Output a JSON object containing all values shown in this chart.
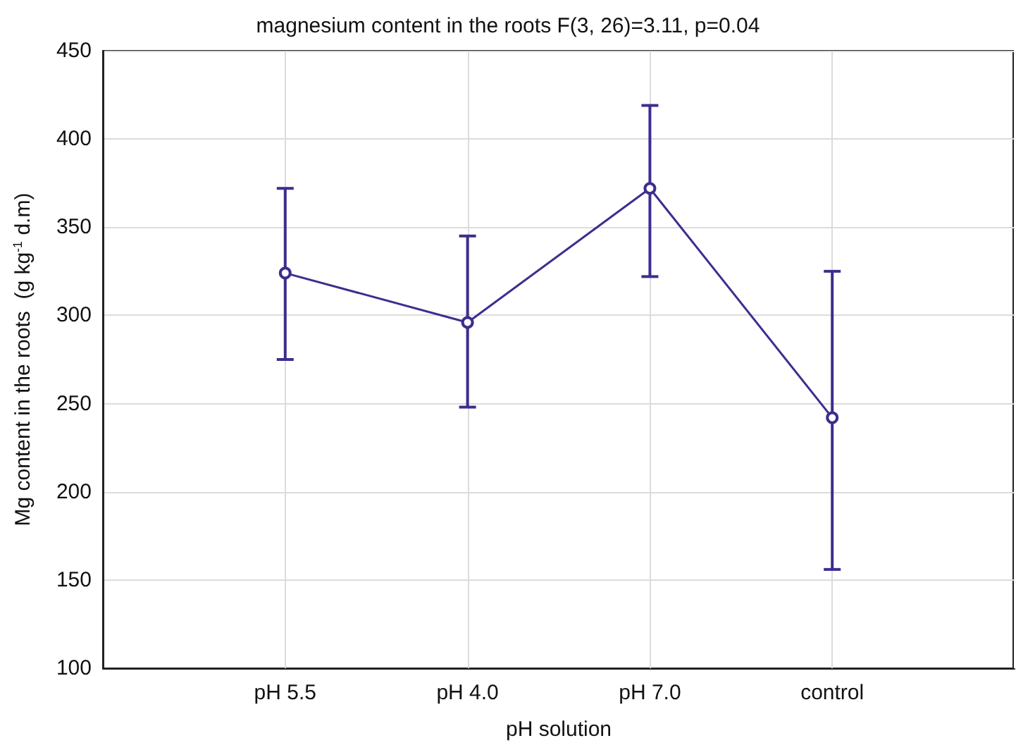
{
  "chart_data": {
    "type": "line",
    "title": "magnesium content in the roots F(3, 26)=3.11, p=0.04",
    "xlabel": "pH solution",
    "ylabel": "Mg content in the roots  (g kg$^{-1}$ d.m)",
    "categories": [
      "pH 5.5",
      "pH 4.0",
      "pH 7.0",
      "control"
    ],
    "series": [
      {
        "color": "#3b2e8e",
        "values": [
          324,
          296,
          372,
          242
        ],
        "errors": [
          [
            275,
            372
          ],
          [
            248,
            345
          ],
          [
            322,
            419
          ],
          [
            156,
            325
          ]
        ]
      }
    ],
    "ylim": [
      100,
      450
    ],
    "yticks": [
      100,
      150,
      200,
      250,
      300,
      350,
      400,
      450
    ],
    "grid": true,
    "marker": "circle",
    "line_style": "solid"
  }
}
